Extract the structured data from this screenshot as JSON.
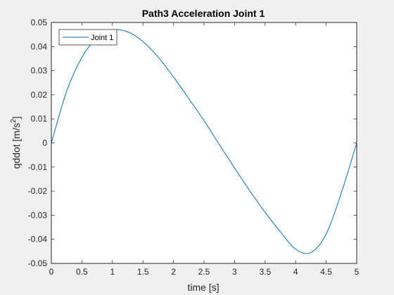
{
  "figure_background": "#f0f0f0",
  "chart_data": {
    "type": "line",
    "title": "Path3 Acceleration Joint 1",
    "xlabel": "time [s]",
    "ylabel_main": "qddot [m/s",
    "ylabel_sup": "2",
    "ylabel_close": "]",
    "xlim": [
      0,
      5
    ],
    "ylim": [
      -0.05,
      0.05
    ],
    "xticks": [
      0,
      0.5,
      1,
      1.5,
      2,
      2.5,
      3,
      3.5,
      4,
      4.5,
      5
    ],
    "xtick_labels": [
      "0",
      "0.5",
      "1",
      "1.5",
      "2",
      "2.5",
      "3",
      "3.5",
      "4",
      "4.5",
      "5"
    ],
    "yticks": [
      0.05,
      0.04,
      0.03,
      0.02,
      0.01,
      0,
      -0.01,
      -0.02,
      -0.03,
      -0.04,
      -0.05
    ],
    "ytick_labels": [
      "0.05",
      "0.04",
      "0.03",
      "0.02",
      "0.01",
      "0",
      "-0.01",
      "-0.02",
      "-0.03",
      "-0.04",
      "-0.05"
    ],
    "grid": false,
    "legend_position": "top-left",
    "series": [
      {
        "name": "Joint 1",
        "color": "#0072bd",
        "x": [
          0,
          0.25,
          0.5,
          0.75,
          1.0,
          1.25,
          1.5,
          1.75,
          2.0,
          2.25,
          2.5,
          2.75,
          3.0,
          3.25,
          3.5,
          3.75,
          4.0,
          4.25,
          4.5,
          4.75,
          5.0
        ],
        "y": [
          0,
          0.0214,
          0.0355,
          0.0437,
          0.0469,
          0.0461,
          0.0421,
          0.0356,
          0.0274,
          0.0184,
          0.0093,
          -0.0007,
          -0.0104,
          -0.0199,
          -0.0288,
          -0.0369,
          -0.0441,
          -0.0455,
          -0.0378,
          -0.0206,
          0
        ]
      }
    ]
  }
}
